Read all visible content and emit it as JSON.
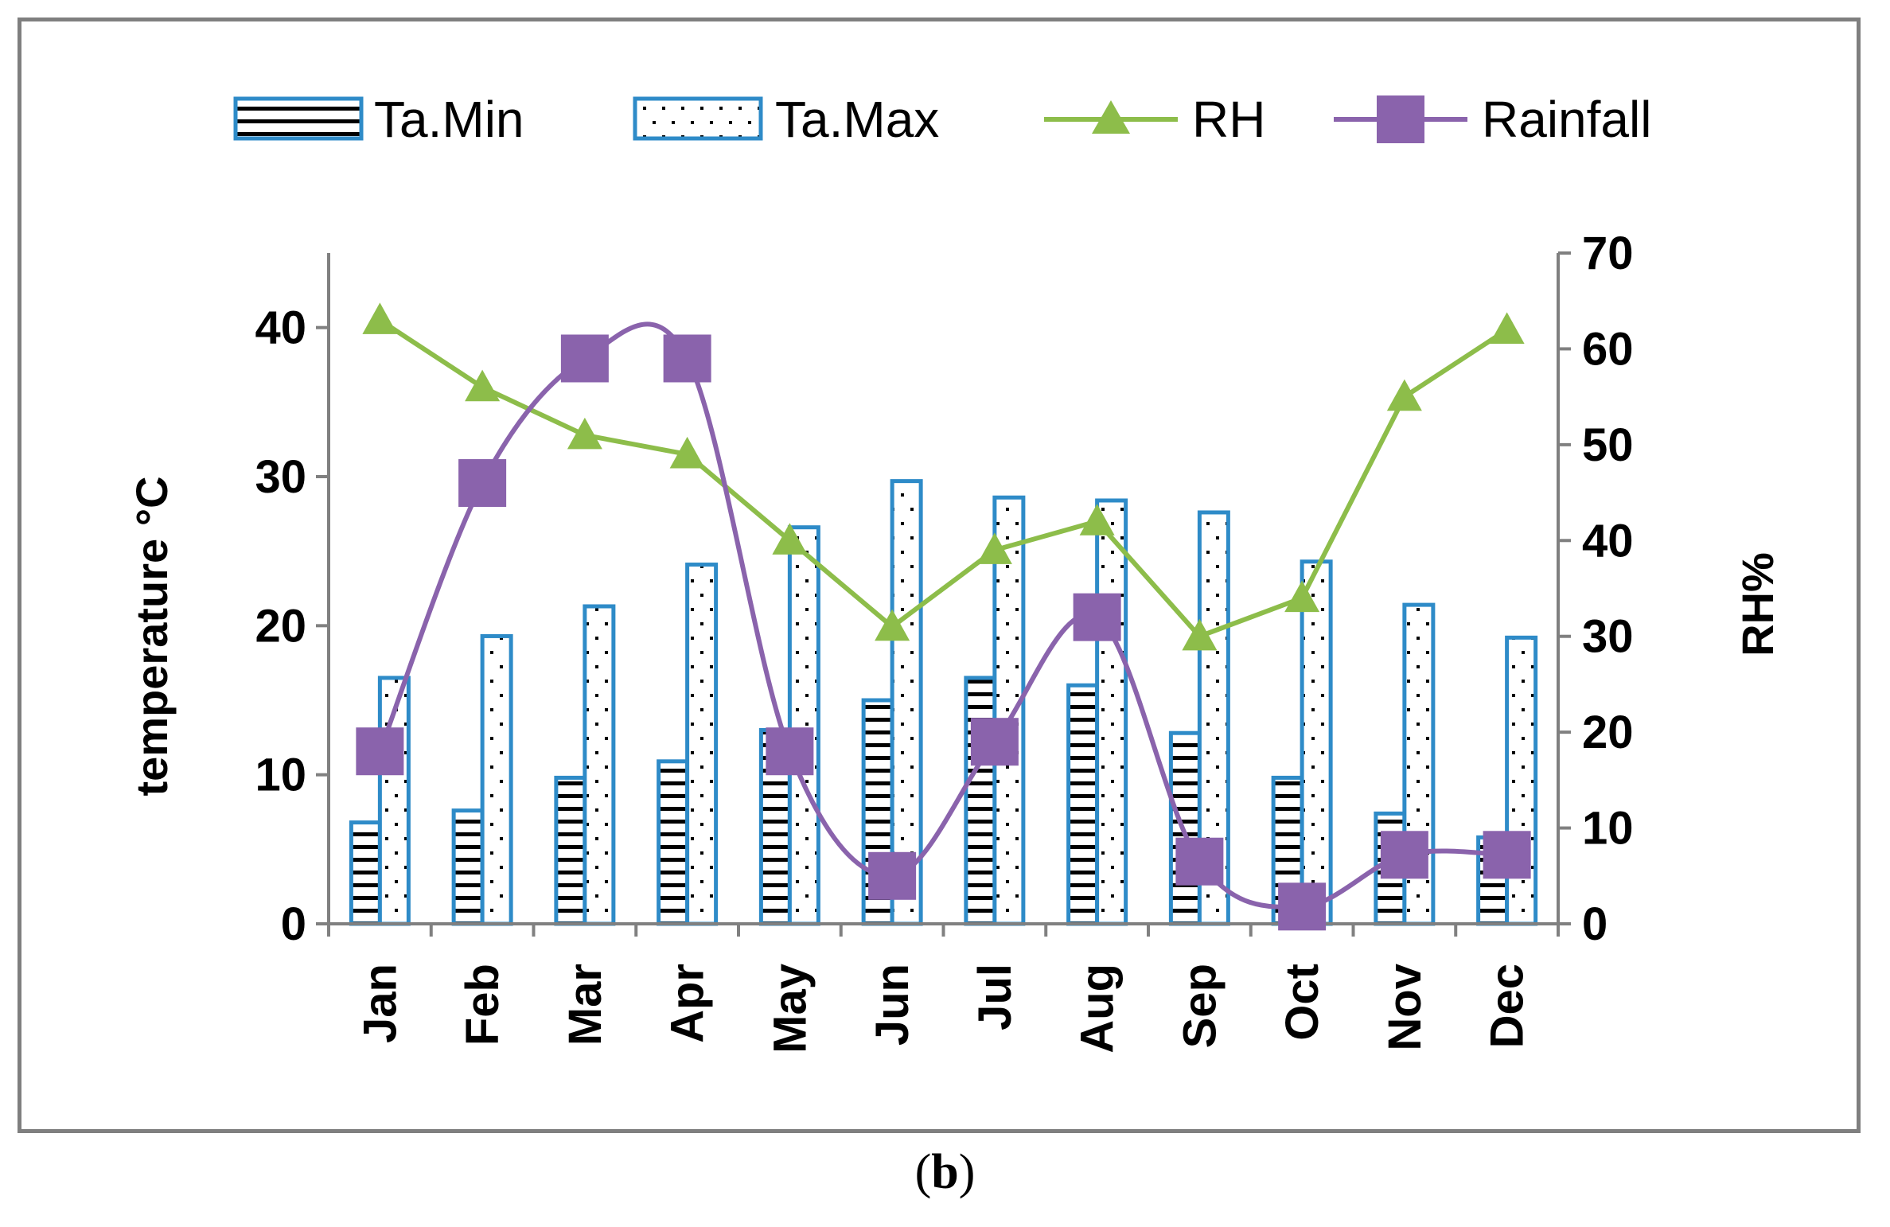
{
  "caption": {
    "open": "(",
    "letter": "b",
    "close": ")"
  },
  "colors": {
    "bar_border": "#2e8bc8",
    "rh_line": "#8dbd4a",
    "rainfall_line": "#8a63ac",
    "axis": "#808080"
  },
  "chart_data": {
    "type": "bar",
    "categories": [
      "Jan",
      "Feb",
      "Mar",
      "Apr",
      "May",
      "Jun",
      "Jul",
      "Aug",
      "Sep",
      "Oct",
      "Nov",
      "Dec"
    ],
    "series": [
      {
        "name": "Ta.Min",
        "type": "bar",
        "axis": "left",
        "pattern": "horizontal-lines",
        "values": [
          6.8,
          7.6,
          9.8,
          10.9,
          13.0,
          15.0,
          16.5,
          16.0,
          12.8,
          9.8,
          7.4,
          5.8
        ]
      },
      {
        "name": "Ta.Max",
        "type": "bar",
        "axis": "left",
        "pattern": "dots",
        "values": [
          16.5,
          19.3,
          21.3,
          24.1,
          26.6,
          29.7,
          28.6,
          28.4,
          27.6,
          24.3,
          21.4,
          19.2
        ]
      },
      {
        "name": "RH",
        "type": "line",
        "axis": "right",
        "marker": "triangle",
        "values": [
          63,
          56,
          51,
          49,
          40,
          31,
          39,
          42,
          30,
          34,
          55,
          62
        ]
      },
      {
        "name": "Rainfall",
        "type": "line",
        "smooth": true,
        "axis": "right",
        "marker": "square",
        "values": [
          18,
          46,
          59,
          59,
          18,
          5,
          19,
          32,
          6.5,
          1.8,
          7.2,
          7.2
        ]
      }
    ],
    "left_axis": {
      "label": "temperature  °C",
      "ylim": [
        0,
        45
      ],
      "ticks": [
        0,
        10,
        20,
        30,
        40
      ]
    },
    "right_axis": {
      "label": "RH%",
      "ylim": [
        0,
        70
      ],
      "ticks": [
        0,
        10,
        20,
        30,
        40,
        50,
        60,
        70
      ]
    },
    "xlabel": "",
    "legend": {
      "placement": "top",
      "entries": [
        "Ta.Min",
        "Ta.Max",
        "RH",
        "Rainfall"
      ]
    },
    "grid": false
  }
}
